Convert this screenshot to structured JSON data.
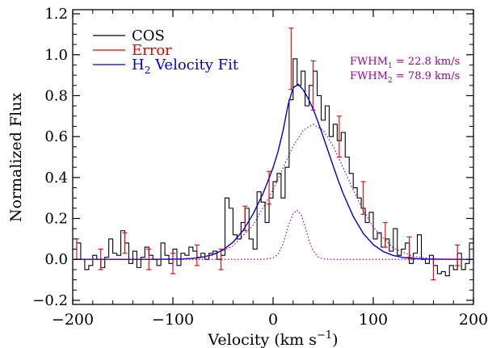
{
  "chart_data": {
    "type": "line",
    "xlabel": "Velocity (km s",
    "xlabel_sup": "−1",
    "xlabel_close": ")",
    "ylabel": "Normalized Flux",
    "xlim": [
      -200,
      200
    ],
    "ylim": [
      -0.22,
      1.22
    ],
    "xticks": [
      -200,
      -100,
      0,
      100,
      200
    ],
    "xtick_labels": [
      "−200",
      "−100",
      "0",
      "100",
      "200"
    ],
    "yticks": [
      -0.2,
      0.0,
      0.2,
      0.4,
      0.6,
      0.8,
      1.0,
      1.2
    ],
    "ytick_labels": [
      "−0.2",
      "0.0",
      "0.2",
      "0.4",
      "0.6",
      "0.8",
      "1.0",
      "1.2"
    ],
    "legend": [
      {
        "label": "COS",
        "color": "#000000"
      },
      {
        "label": "Error",
        "color": "#e00000"
      },
      {
        "label_main": "H",
        "label_sub": "2",
        "label_rest": " Velocity Fit",
        "color": "#0000cc"
      }
    ],
    "annotations": [
      {
        "main": "FWHM",
        "sub": "1",
        "rest": " = 22.8 km/s",
        "color": "#990099"
      },
      {
        "main": "FWHM",
        "sub": "2",
        "rest": " = 78.9 km/s",
        "color": "#990099"
      }
    ],
    "series": [
      {
        "name": "COS",
        "style": "step",
        "color": "#000000",
        "x": [
          -200,
          -196,
          -192,
          -188,
          -184,
          -180,
          -176,
          -172,
          -168,
          -164,
          -160,
          -156,
          -152,
          -148,
          -144,
          -140,
          -136,
          -132,
          -128,
          -124,
          -120,
          -116,
          -112,
          -108,
          -104,
          -100,
          -96,
          -92,
          -88,
          -84,
          -80,
          -76,
          -72,
          -68,
          -64,
          -60,
          -56,
          -52,
          -48,
          -44,
          -40,
          -36,
          -32,
          -28,
          -24,
          -20,
          -16,
          -12,
          -8,
          -4,
          0,
          4,
          8,
          12,
          16,
          20,
          24,
          28,
          32,
          36,
          40,
          44,
          48,
          52,
          56,
          60,
          64,
          68,
          72,
          76,
          80,
          84,
          88,
          92,
          96,
          100,
          104,
          108,
          112,
          116,
          120,
          124,
          128,
          132,
          136,
          140,
          144,
          148,
          152,
          156,
          160,
          164,
          168,
          172,
          176,
          180,
          184,
          188,
          192,
          196,
          200
        ],
        "y": [
          0.05,
          0.08,
          0.0,
          -0.05,
          -0.03,
          0.02,
          0.0,
          -0.04,
          0.01,
          0.1,
          0.03,
          0.02,
          0.14,
          0.08,
          -0.02,
          0.04,
          -0.04,
          0.01,
          0.06,
          0.02,
          0.0,
          -0.03,
          0.08,
          0.02,
          -0.02,
          0.05,
          -0.03,
          0.03,
          0.02,
          0.06,
          0.04,
          0.01,
          0.03,
          0.0,
          0.03,
          0.04,
          0.0,
          0.02,
          0.3,
          0.25,
          0.12,
          0.1,
          0.18,
          0.25,
          0.1,
          0.05,
          0.33,
          0.28,
          0.18,
          0.3,
          0.38,
          0.42,
          0.3,
          0.45,
          0.78,
          0.98,
          0.85,
          0.92,
          0.75,
          0.85,
          0.92,
          0.8,
          0.68,
          0.75,
          0.6,
          0.66,
          0.58,
          0.62,
          0.5,
          0.42,
          0.35,
          0.3,
          0.25,
          0.18,
          0.23,
          0.1,
          0.13,
          0.06,
          0.1,
          0.04,
          0.15,
          0.02,
          0.05,
          0.08,
          -0.02,
          0.03,
          0.12,
          0.0,
          -0.02,
          0.02,
          -0.03,
          -0.07,
          -0.06,
          -0.08,
          -0.03,
          -0.05,
          0.03,
          -0.05,
          -0.02,
          0.08,
          0.12
        ]
      },
      {
        "name": "Error",
        "style": "errorbar",
        "color": "#e00000",
        "x": [
          -196,
          -172,
          -148,
          -124,
          -100,
          -76,
          -52,
          -28,
          -4,
          18,
          40,
          66,
          90,
          112,
          136,
          160,
          184
        ],
        "y": [
          0.05,
          0.0,
          0.08,
          0.0,
          -0.02,
          0.02,
          0.0,
          0.2,
          0.35,
          0.98,
          0.85,
          0.6,
          0.3,
          0.12,
          0.06,
          -0.05,
          0.02
        ],
        "err": [
          0.05,
          0.05,
          0.05,
          0.05,
          0.05,
          0.05,
          0.05,
          0.06,
          0.08,
          0.15,
          0.12,
          0.1,
          0.08,
          0.06,
          0.05,
          0.05,
          0.05
        ]
      },
      {
        "name": "H2 Velocity Fit",
        "style": "line",
        "color": "#0000cc",
        "x": [
          -200,
          -180,
          -160,
          -140,
          -120,
          -100,
          -90,
          -80,
          -70,
          -60,
          -50,
          -40,
          -30,
          -20,
          -10,
          0,
          5,
          10,
          15,
          20,
          25,
          30,
          35,
          40,
          45,
          50,
          55,
          60,
          65,
          70,
          80,
          90,
          100,
          110,
          120,
          130,
          140,
          150,
          160,
          180,
          200
        ],
        "y": [
          0.0,
          0.0,
          0.0,
          0.0,
          0.0,
          0.001,
          0.002,
          0.005,
          0.011,
          0.024,
          0.046,
          0.084,
          0.141,
          0.221,
          0.322,
          0.448,
          0.528,
          0.63,
          0.756,
          0.838,
          0.856,
          0.829,
          0.787,
          0.734,
          0.67,
          0.6,
          0.528,
          0.456,
          0.386,
          0.321,
          0.21,
          0.127,
          0.072,
          0.038,
          0.019,
          0.009,
          0.004,
          0.002,
          0.001,
          0.0,
          0.0
        ]
      },
      {
        "name": "Component 1",
        "style": "dotted",
        "color": "#990099",
        "x": [
          -200,
          -40,
          -20,
          -10,
          0,
          5,
          10,
          15,
          20,
          24,
          28,
          32,
          36,
          40,
          45,
          50,
          60,
          80,
          200
        ],
        "y": [
          0.0,
          0.0,
          0.0,
          0.0,
          0.007,
          0.025,
          0.075,
          0.16,
          0.224,
          0.24,
          0.218,
          0.16,
          0.09,
          0.042,
          0.011,
          0.002,
          0.0,
          0.0,
          0.0
        ]
      },
      {
        "name": "Component 2",
        "style": "dotted",
        "color": "#990099",
        "x": [
          -200,
          -100,
          -80,
          -60,
          -40,
          -20,
          0,
          10,
          20,
          30,
          40,
          50,
          60,
          70,
          80,
          90,
          100,
          120,
          140,
          160,
          200
        ],
        "y": [
          0.0,
          0.001,
          0.005,
          0.021,
          0.066,
          0.167,
          0.339,
          0.447,
          0.553,
          0.63,
          0.66,
          0.63,
          0.553,
          0.447,
          0.339,
          0.239,
          0.157,
          0.055,
          0.014,
          0.003,
          0.0
        ]
      }
    ]
  }
}
